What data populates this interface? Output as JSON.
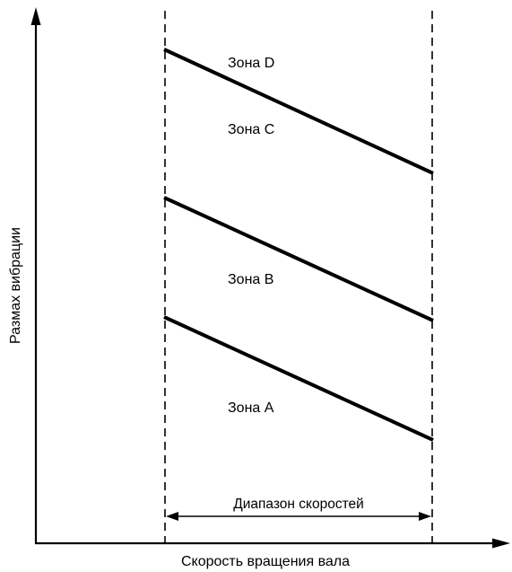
{
  "diagram": {
    "y_axis_label": "Размах вибрации",
    "x_axis_label": "Скорость вращения вала",
    "range_label": "Диапазон скоростей",
    "zones": [
      {
        "id": "D",
        "label": "Зона D"
      },
      {
        "id": "C",
        "label": "Зона C"
      },
      {
        "id": "B",
        "label": "Зона B"
      },
      {
        "id": "A",
        "label": "Зона A"
      }
    ],
    "boundaries": [
      {
        "between": "C/D"
      },
      {
        "between": "B/C"
      },
      {
        "between": "A/B"
      }
    ],
    "colors": {
      "line": "#000000",
      "background": "#ffffff"
    }
  }
}
